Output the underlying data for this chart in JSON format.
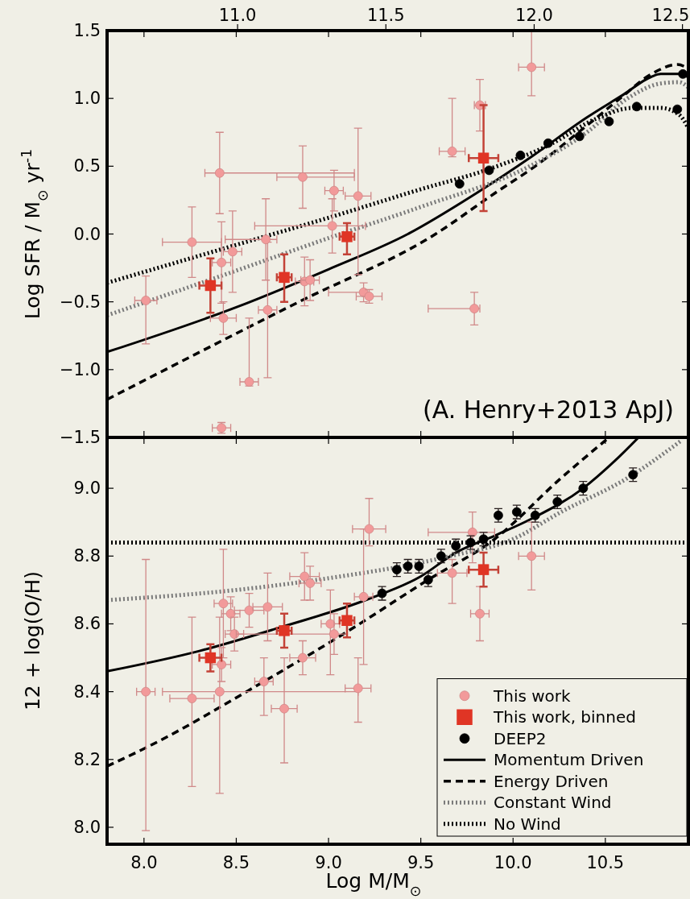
{
  "chart_data": [
    {
      "type": "scatter",
      "ylabel": "Log SFR / M$_{⊙}$ yr$^{-1}$",
      "annotations": [
        "(A. Henry+2013 ApJ)"
      ],
      "xlim": [
        7.8,
        10.95
      ],
      "xticks": [
        {
          "value": 8,
          "label": null
        },
        {
          "value": 8.5,
          "label": null
        },
        {
          "value": 9,
          "label": null
        },
        {
          "value": 9.5,
          "label": null
        },
        {
          "value": 10,
          "label": null
        },
        {
          "value": 10.5,
          "label": null
        }
      ],
      "x2lim": [
        10.56,
        12.52
      ],
      "x2ticks": [
        {
          "value": 11,
          "label": "11.0"
        },
        {
          "value": 11.5,
          "label": "11.5"
        },
        {
          "value": 12,
          "label": "12.0"
        },
        {
          "value": 12.5,
          "label": "12.5"
        }
      ],
      "ylim": [
        -1.5,
        1.5
      ],
      "yticks": [
        {
          "value": -1.5,
          "label": "−1.5"
        },
        {
          "value": -1,
          "label": "−1.0"
        },
        {
          "value": -0.5,
          "label": "−0.5"
        },
        {
          "value": 0,
          "label": "0.0"
        },
        {
          "value": 0.5,
          "label": "0.5"
        },
        {
          "value": 1,
          "label": "1.0"
        },
        {
          "value": 1.5,
          "label": "1.5"
        }
      ],
      "tick_labels": "y",
      "grid": false,
      "legend": false,
      "series": [
        {
          "type": "line",
          "color": "#000000",
          "line_style": "solid",
          "x": [
            7.8,
            8.5,
            9.0,
            9.43,
            9.8,
            10.1,
            10.4,
            10.6,
            10.75,
            10.8,
            10.92,
            10.95
          ],
          "values": [
            -0.87,
            -0.54,
            -0.26,
            0.0,
            0.3,
            0.57,
            0.86,
            1.03,
            1.16,
            1.18,
            1.18,
            1.15
          ]
        },
        {
          "type": "line",
          "color": "#000000",
          "line_style": "dashed",
          "x": [
            7.8,
            8.84,
            9.58,
            9.9,
            10.12,
            10.4,
            10.58,
            10.75,
            10.89,
            10.95
          ],
          "values": [
            -1.22,
            -0.5,
            0.0,
            0.3,
            0.5,
            0.8,
            1.0,
            1.18,
            1.25,
            1.22
          ]
        },
        {
          "type": "line",
          "color": "#7a7a7a",
          "line_style": "dotted",
          "x": [
            7.8,
            8.5,
            9.0,
            9.5,
            10.09,
            10.4,
            10.62,
            10.8,
            10.9,
            10.95
          ],
          "values": [
            -0.6,
            -0.27,
            -0.03,
            0.2,
            0.5,
            0.75,
            1.0,
            1.11,
            1.12,
            1.08
          ]
        },
        {
          "type": "line",
          "color": "#000000",
          "line_style": "dotted",
          "x": [
            7.8,
            8.5,
            9.0,
            9.5,
            9.85,
            10.2,
            10.45,
            10.65,
            10.8,
            10.9,
            10.95
          ],
          "values": [
            -0.36,
            -0.08,
            0.12,
            0.33,
            0.47,
            0.66,
            0.85,
            0.93,
            0.93,
            0.88,
            0.78
          ]
        },
        {
          "color": "#f29a9a",
          "marker": "circle",
          "x": [
            8.01,
            8.26,
            8.41,
            8.42,
            8.43,
            8.42,
            8.48,
            8.67,
            8.57,
            8.66,
            8.86,
            8.87,
            8.9,
            9.03,
            9.02,
            9.16,
            9.19,
            9.22,
            9.79,
            9.67,
            9.82,
            10.1
          ],
          "values": [
            -0.49,
            -0.06,
            0.45,
            -0.21,
            -0.62,
            -1.43,
            -0.13,
            -0.56,
            -1.09,
            -0.04,
            0.42,
            -0.35,
            -0.34,
            0.32,
            0.06,
            0.28,
            -0.43,
            -0.46,
            -0.55,
            0.61,
            0.95,
            1.23
          ],
          "errors": [
            [
              -0.81,
              -0.31
            ],
            0.26,
            0.3,
            0.3,
            0.12,
            0.04,
            0.3,
            0.5,
            [
              -1.12,
              -0.62
            ],
            0.3,
            0.23,
            0.18,
            0.15,
            0.15,
            0.2,
            [
              -0.3,
              0.78
            ],
            0.07,
            0.05,
            0.12,
            [
              0.57,
              1.0
            ],
            0.19,
            [
              1.02,
              1.5
            ]
          ],
          "xerrors": [
            0.06,
            0.16,
            [
              8.33,
              9.14
            ],
            0.05,
            0.07,
            0.05,
            0.05,
            0.05,
            0.05,
            [
              8.44,
              8.72
            ],
            [
              8.72,
              9.14
            ],
            0.05,
            0.05,
            0.05,
            [
              8.6,
              9.2
            ],
            0.07,
            [
              9.0,
              9.2
            ],
            0.07,
            [
              9.54,
              9.82
            ],
            0.07,
            0.03,
            0.07
          ]
        },
        {
          "color": "#e03525",
          "marker": "square",
          "x": [
            8.36,
            8.76,
            9.1,
            9.84
          ],
          "values": [
            -0.38,
            -0.32,
            -0.02,
            0.56
          ],
          "errors": [
            [
              -0.58,
              -0.18
            ],
            [
              -0.5,
              -0.15
            ],
            [
              -0.15,
              0.08
            ],
            [
              0.17,
              0.95
            ]
          ],
          "xerrors": [
            0.06,
            0.04,
            0.04,
            0.08
          ]
        },
        {
          "color": "#000000",
          "marker": "circle",
          "x": [
            9.71,
            9.87,
            10.04,
            10.19,
            10.36,
            10.52,
            10.67,
            10.89,
            10.92
          ],
          "values": [
            0.37,
            0.47,
            0.58,
            0.67,
            0.72,
            0.83,
            0.94,
            0.92,
            1.18
          ]
        }
      ]
    },
    {
      "type": "scatter",
      "xlabel": "Log M/M$_{⊙}$",
      "ylabel": "12 + log(O/H)",
      "xlim": [
        7.8,
        10.95
      ],
      "xticks": [
        {
          "value": 8,
          "label": "8.0"
        },
        {
          "value": 8.5,
          "label": "8.5"
        },
        {
          "value": 9,
          "label": "9.0"
        },
        {
          "value": 9.5,
          "label": "9.5"
        },
        {
          "value": 10,
          "label": "10.0"
        },
        {
          "value": 10.5,
          "label": "10.5"
        }
      ],
      "ylim": [
        7.95,
        9.15
      ],
      "yticks": [
        {
          "value": 8,
          "label": "8.0"
        },
        {
          "value": 8.2,
          "label": "8.2"
        },
        {
          "value": 8.4,
          "label": "8.4"
        },
        {
          "value": 8.6,
          "label": "8.6"
        },
        {
          "value": 8.8,
          "label": "8.8"
        },
        {
          "value": 9,
          "label": "9.0"
        }
      ],
      "grid": false,
      "legend": "bottom right",
      "series": [
        {
          "name": "This work",
          "color": "#f29a9a",
          "marker": "circle",
          "x": [
            8.01,
            8.26,
            8.41,
            8.43,
            8.47,
            8.49,
            8.57,
            8.67,
            8.87,
            8.9,
            8.86,
            9.01,
            9.03,
            9.19,
            9.22,
            9.67,
            9.78,
            9.82,
            10.1,
            8.65,
            8.76,
            9.16,
            8.42
          ],
          "values": [
            8.4,
            8.38,
            8.4,
            8.66,
            8.63,
            8.57,
            8.64,
            8.65,
            8.74,
            8.72,
            8.5,
            8.6,
            8.57,
            8.68,
            8.88,
            8.75,
            8.87,
            8.63,
            8.8,
            8.43,
            8.35,
            8.41,
            8.48
          ],
          "errors": [
            [
              7.99,
              8.79
            ],
            [
              8.12,
              8.62
            ],
            [
              8.1,
              8.62
            ],
            [
              8.5,
              8.82
            ],
            0.05,
            0.05,
            0.05,
            [
              8.55,
              8.75
            ],
            0.07,
            0.05,
            0.05,
            [
              8.45,
              8.7
            ],
            0.06,
            0.2,
            [
              8.83,
              8.97
            ],
            [
              8.66,
              8.79
            ],
            [
              8.78,
              8.93
            ],
            [
              8.55,
              8.71
            ],
            0.1,
            [
              8.33,
              8.5
            ],
            [
              8.19,
              8.5
            ],
            [
              8.31,
              8.5
            ],
            0.05
          ],
          "xerrors": [
            0.05,
            0.12,
            [
              8.1,
              9.16
            ],
            0.05,
            0.05,
            0.05,
            0.08,
            0.08,
            0.08,
            0.06,
            0.07,
            0.05,
            [
              8.5,
              9.1
            ],
            0.05,
            0.09,
            0.08,
            [
              9.54,
              9.9
            ],
            0.05,
            0.07,
            0.05,
            0.07,
            0.07,
            0.05
          ]
        },
        {
          "name": "This work, binned",
          "color": "#e03525",
          "marker": "square",
          "x": [
            8.36,
            8.76,
            9.1,
            9.84
          ],
          "values": [
            8.5,
            8.58,
            8.61,
            8.76
          ],
          "errors": [
            0.04,
            0.05,
            0.05,
            0.05
          ],
          "xerrors": [
            0.06,
            0.04,
            0.04,
            0.08
          ]
        },
        {
          "name": "DEEP2",
          "color": "#000000",
          "marker": "circle",
          "x": [
            9.29,
            9.37,
            9.43,
            9.49,
            9.54,
            9.61,
            9.69,
            9.77,
            9.84,
            9.92,
            10.02,
            10.12,
            10.24,
            10.38,
            10.65
          ],
          "values": [
            8.69,
            8.76,
            8.77,
            8.77,
            8.73,
            8.8,
            8.83,
            8.84,
            8.85,
            8.92,
            8.93,
            8.92,
            8.96,
            9.0,
            9.04
          ],
          "errors": [
            0.02,
            0.02,
            0.02,
            0.02,
            0.02,
            0.02,
            0.02,
            0.02,
            0.02,
            0.02,
            0.02,
            0.02,
            0.02,
            0.02,
            0.02
          ]
        },
        {
          "name": "Momentum Driven",
          "type": "line",
          "color": "#000000",
          "line_style": "solid",
          "x": [
            7.8,
            8.3,
            8.74,
            9.2,
            9.5,
            9.69,
            9.9,
            10.1,
            10.38,
            10.55,
            10.68
          ],
          "values": [
            8.46,
            8.52,
            8.59,
            8.67,
            8.74,
            8.81,
            8.86,
            8.91,
            9.0,
            9.08,
            9.15
          ]
        },
        {
          "name": "Energy Driven",
          "type": "line",
          "color": "#000000",
          "line_style": "dashed",
          "x": [
            7.8,
            8.03,
            8.65,
            9.11,
            9.54,
            9.9,
            10.26,
            10.52
          ],
          "values": [
            8.18,
            8.24,
            8.43,
            8.58,
            8.73,
            8.85,
            9.03,
            9.15
          ]
        },
        {
          "name": "Constant Wind",
          "type": "line",
          "color": "#7a7a7a",
          "line_style": "dotted",
          "x": [
            7.8,
            8.5,
            8.94,
            9.66,
            10.0,
            10.26,
            10.62,
            10.91
          ],
          "values": [
            8.67,
            8.7,
            8.73,
            8.8,
            8.85,
            8.93,
            9.03,
            9.14
          ]
        },
        {
          "name": "No Wind",
          "type": "line",
          "color": "#000000",
          "line_style": "dotted",
          "x": [
            7.8,
            10.95
          ],
          "values": [
            8.84,
            8.84
          ]
        }
      ]
    }
  ]
}
